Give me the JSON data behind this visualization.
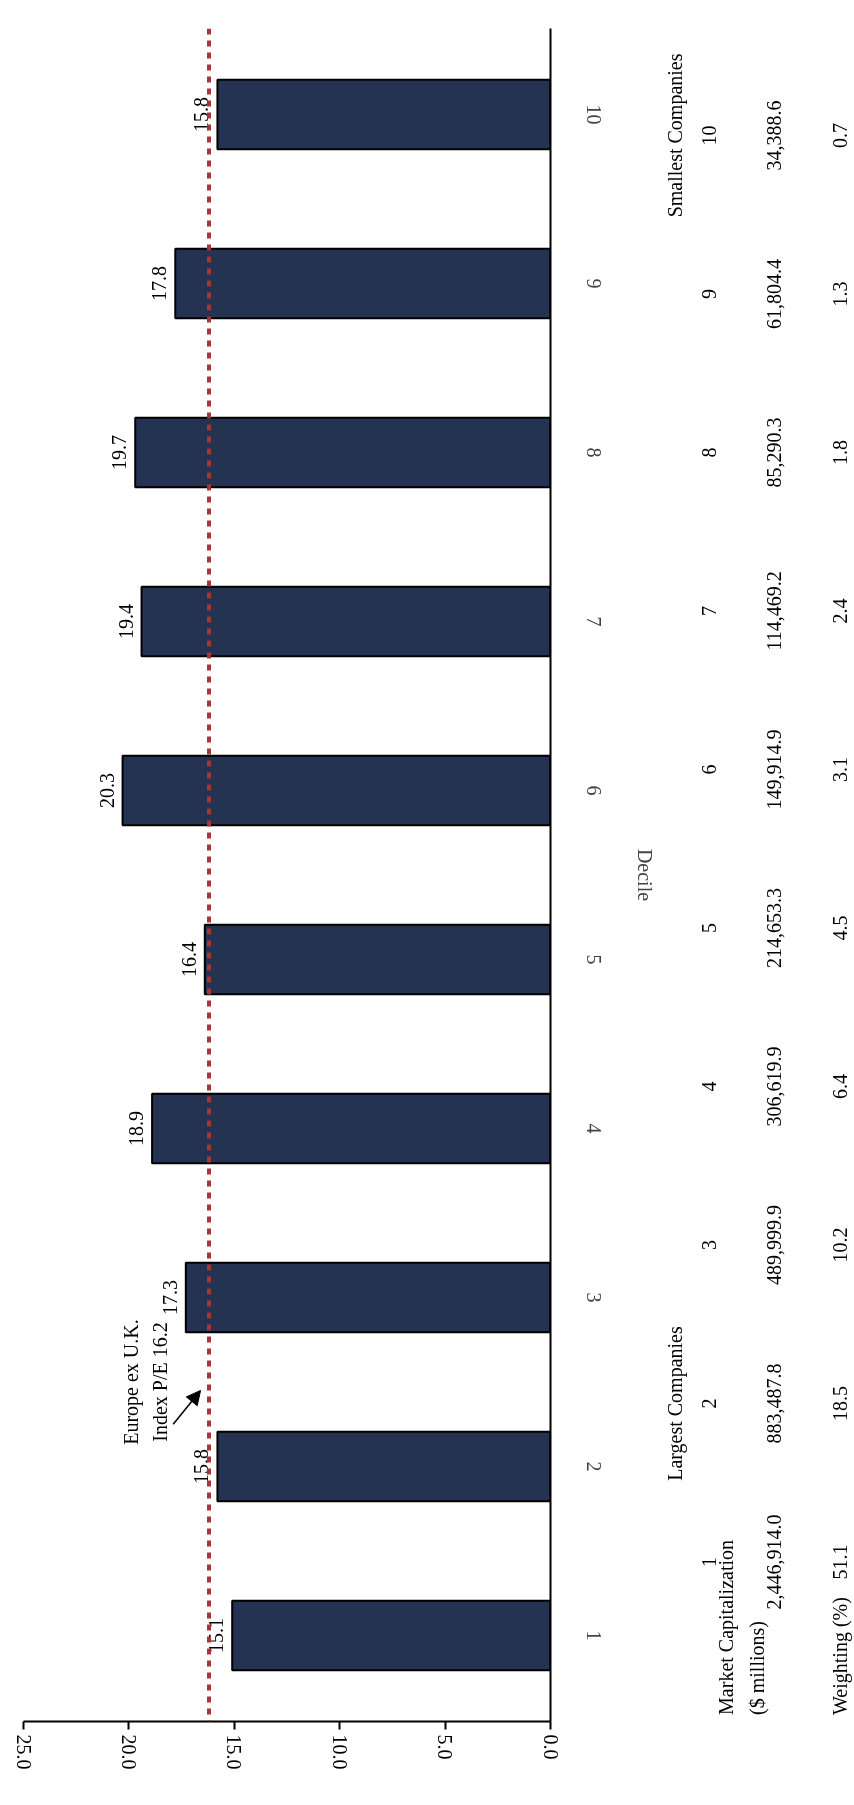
{
  "chart_data": {
    "type": "bar",
    "orientation": "horizontal",
    "ylabel": "Decile",
    "categories": [
      "10",
      "9",
      "8",
      "7",
      "6",
      "5",
      "4",
      "3",
      "2",
      "1"
    ],
    "values": [
      15.8,
      17.8,
      19.7,
      19.4,
      20.3,
      16.4,
      18.9,
      17.3,
      15.8,
      15.1
    ],
    "color": "#243352",
    "data_labels": true,
    "grid": false,
    "xlim": [
      25,
      0
    ],
    "xticks": [
      {
        "value": 25,
        "label": "25.0"
      },
      {
        "value": 20,
        "label": "20.0"
      },
      {
        "value": 15,
        "label": "15.0"
      },
      {
        "value": 10,
        "label": "10.0"
      },
      {
        "value": 5,
        "label": "5.0"
      },
      {
        "value": 0,
        "label": "0.0"
      }
    ],
    "ref_lines": [
      {
        "axis": "x",
        "value": 16.2,
        "label": "Europe ex U.K. Index P/E 16.2",
        "color": "#a33636",
        "line_style": "dashed"
      }
    ],
    "annotations": [
      "Largest Companies",
      "Smallest Companies",
      "Market Capitalization ($ millions)",
      "Weighting (%)",
      "34,388.6",
      "61,804.4",
      "85,290.3",
      "114,469.2",
      "149,914.9",
      "214,653.3",
      "306,619.9",
      "489,999.9",
      "883,487.8",
      "2,446,914.0",
      "0.7",
      "1.3",
      "1.8",
      "2.4",
      "3.1",
      "4.5",
      "6.4",
      "10.2",
      "18.5",
      "51.1"
    ]
  }
}
